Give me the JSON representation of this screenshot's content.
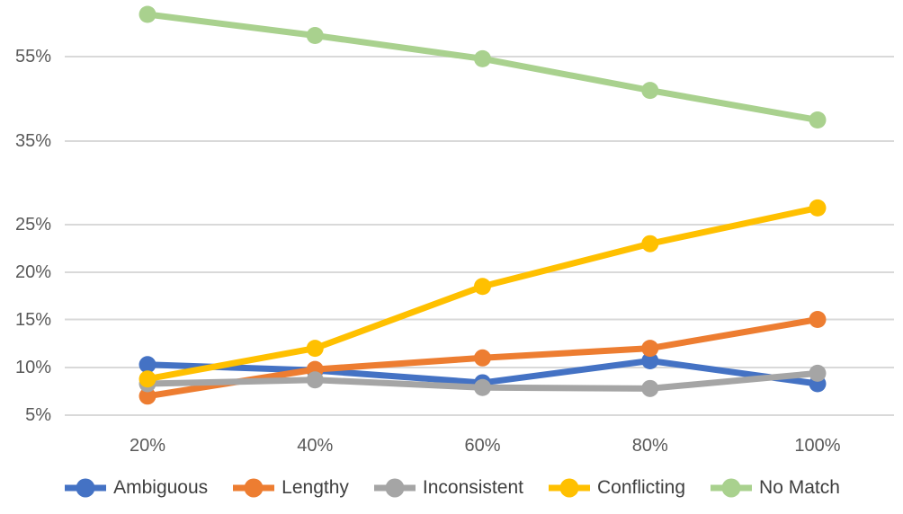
{
  "chart_data": {
    "type": "line",
    "title": "",
    "xlabel": "",
    "ylabel": "",
    "x_categories": [
      "20%",
      "40%",
      "60%",
      "80%",
      "100%"
    ],
    "y_ticks": [
      {
        "label": "5%",
        "value": 5
      },
      {
        "label": "10%",
        "value": 10
      },
      {
        "label": "15%",
        "value": 15
      },
      {
        "label": "20%",
        "value": 20
      },
      {
        "label": "25%",
        "value": 25
      },
      {
        "label": "35%",
        "value": 35
      },
      {
        "label": "55%",
        "value": 55
      }
    ],
    "axis_note": "y axis is non-linear: equal spacing for 5-25, compressed above 25",
    "grid": "horizontal-only",
    "legend_position": "bottom",
    "marker": "circle",
    "series": [
      {
        "name": "Ambiguous",
        "color": "#4472C4",
        "values": [
          10.3,
          9.7,
          8.4,
          10.7,
          8.3
        ]
      },
      {
        "name": "Lengthy",
        "color": "#ED7D31",
        "values": [
          7.0,
          9.8,
          11.0,
          12.0,
          15.0
        ]
      },
      {
        "name": "Inconsistent",
        "color": "#A5A5A5",
        "values": [
          8.3,
          8.7,
          7.9,
          7.8,
          9.4
        ]
      },
      {
        "name": "Conflicting",
        "color": "#FFC000",
        "values": [
          8.8,
          12.0,
          18.5,
          23.0,
          27.0
        ]
      },
      {
        "name": "No Match",
        "color": "#A9D18E",
        "values": [
          65.0,
          60.0,
          54.5,
          47.0,
          40.0
        ]
      }
    ],
    "gridline_color": "#D9D9D9",
    "tick_text_color": "#595959",
    "legend_text_color": "#3F3F3F"
  }
}
